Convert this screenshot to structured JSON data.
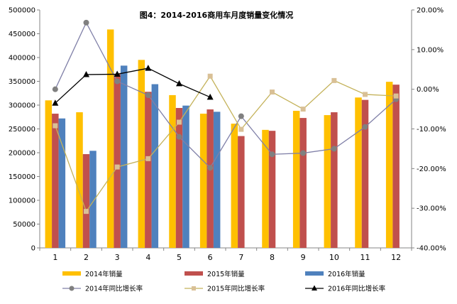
{
  "chart_data": {
    "type": "bar",
    "title": "图4：2014-2016商用车月度销量变化情况",
    "categories": [
      "1",
      "2",
      "3",
      "4",
      "5",
      "6",
      "7",
      "8",
      "9",
      "10",
      "11",
      "12"
    ],
    "y_left": {
      "min": 0,
      "max": 500000,
      "step": 50000,
      "tick_labels": [
        "0",
        "50000",
        "100000",
        "150000",
        "200000",
        "250000",
        "300000",
        "350000",
        "400000",
        "450000",
        "500000"
      ]
    },
    "y_right": {
      "min": -40,
      "max": 20,
      "step": 10,
      "tick_labels": [
        "-40.00%",
        "-30.00%",
        "-20.00%",
        "-10.00%",
        "0.00%",
        "10.00%",
        "20.00%"
      ]
    },
    "bar_series": [
      {
        "name": "2014年销量",
        "color": "#FFC000",
        "values": [
          310000,
          285000,
          459000,
          395000,
          321000,
          282000,
          261000,
          248000,
          288000,
          279000,
          316000,
          349000
        ]
      },
      {
        "name": "2015年销量",
        "color": "#C0504D",
        "values": [
          282000,
          197000,
          365000,
          328000,
          294000,
          291000,
          235000,
          246000,
          273000,
          285000,
          311000,
          343000
        ]
      },
      {
        "name": "2016年销量",
        "color": "#4F81BD",
        "values": [
          272000,
          204000,
          383000,
          344000,
          299000,
          286000,
          null,
          null,
          null,
          null,
          null,
          null
        ]
      }
    ],
    "line_series": [
      {
        "name": "2014年同比增长率",
        "color": "#8080A8",
        "marker": "circle",
        "marker_color": "#808080",
        "values": [
          0.0,
          16.8,
          2.0,
          -1.5,
          -12.0,
          -19.8,
          -6.8,
          -16.4,
          -16.1,
          -15.0,
          -9.5,
          -2.5
        ]
      },
      {
        "name": "2015年同比增长率",
        "color": "#C4B25A",
        "marker": "square",
        "marker_color": "#D9C096",
        "values": [
          -9.2,
          -30.8,
          -19.6,
          -17.5,
          -8.3,
          3.3,
          -10.1,
          -0.7,
          -5.0,
          2.2,
          -1.3,
          -1.7
        ]
      },
      {
        "name": "2016年同比增长率",
        "color": "#000000",
        "marker": "triangle",
        "marker_color": "#000000",
        "values": [
          -3.5,
          3.7,
          3.8,
          5.3,
          1.4,
          -2.0,
          null,
          null,
          null,
          null,
          null,
          null
        ]
      }
    ],
    "legend": [
      {
        "label": "2014年销量"
      },
      {
        "label": "2015年销量"
      },
      {
        "label": "2016年销量"
      },
      {
        "label": "2014年同比增长率"
      },
      {
        "label": "2015年同比增长率"
      },
      {
        "label": "2016年同比增长率"
      }
    ],
    "grid": false,
    "legend_position": "bottom"
  }
}
